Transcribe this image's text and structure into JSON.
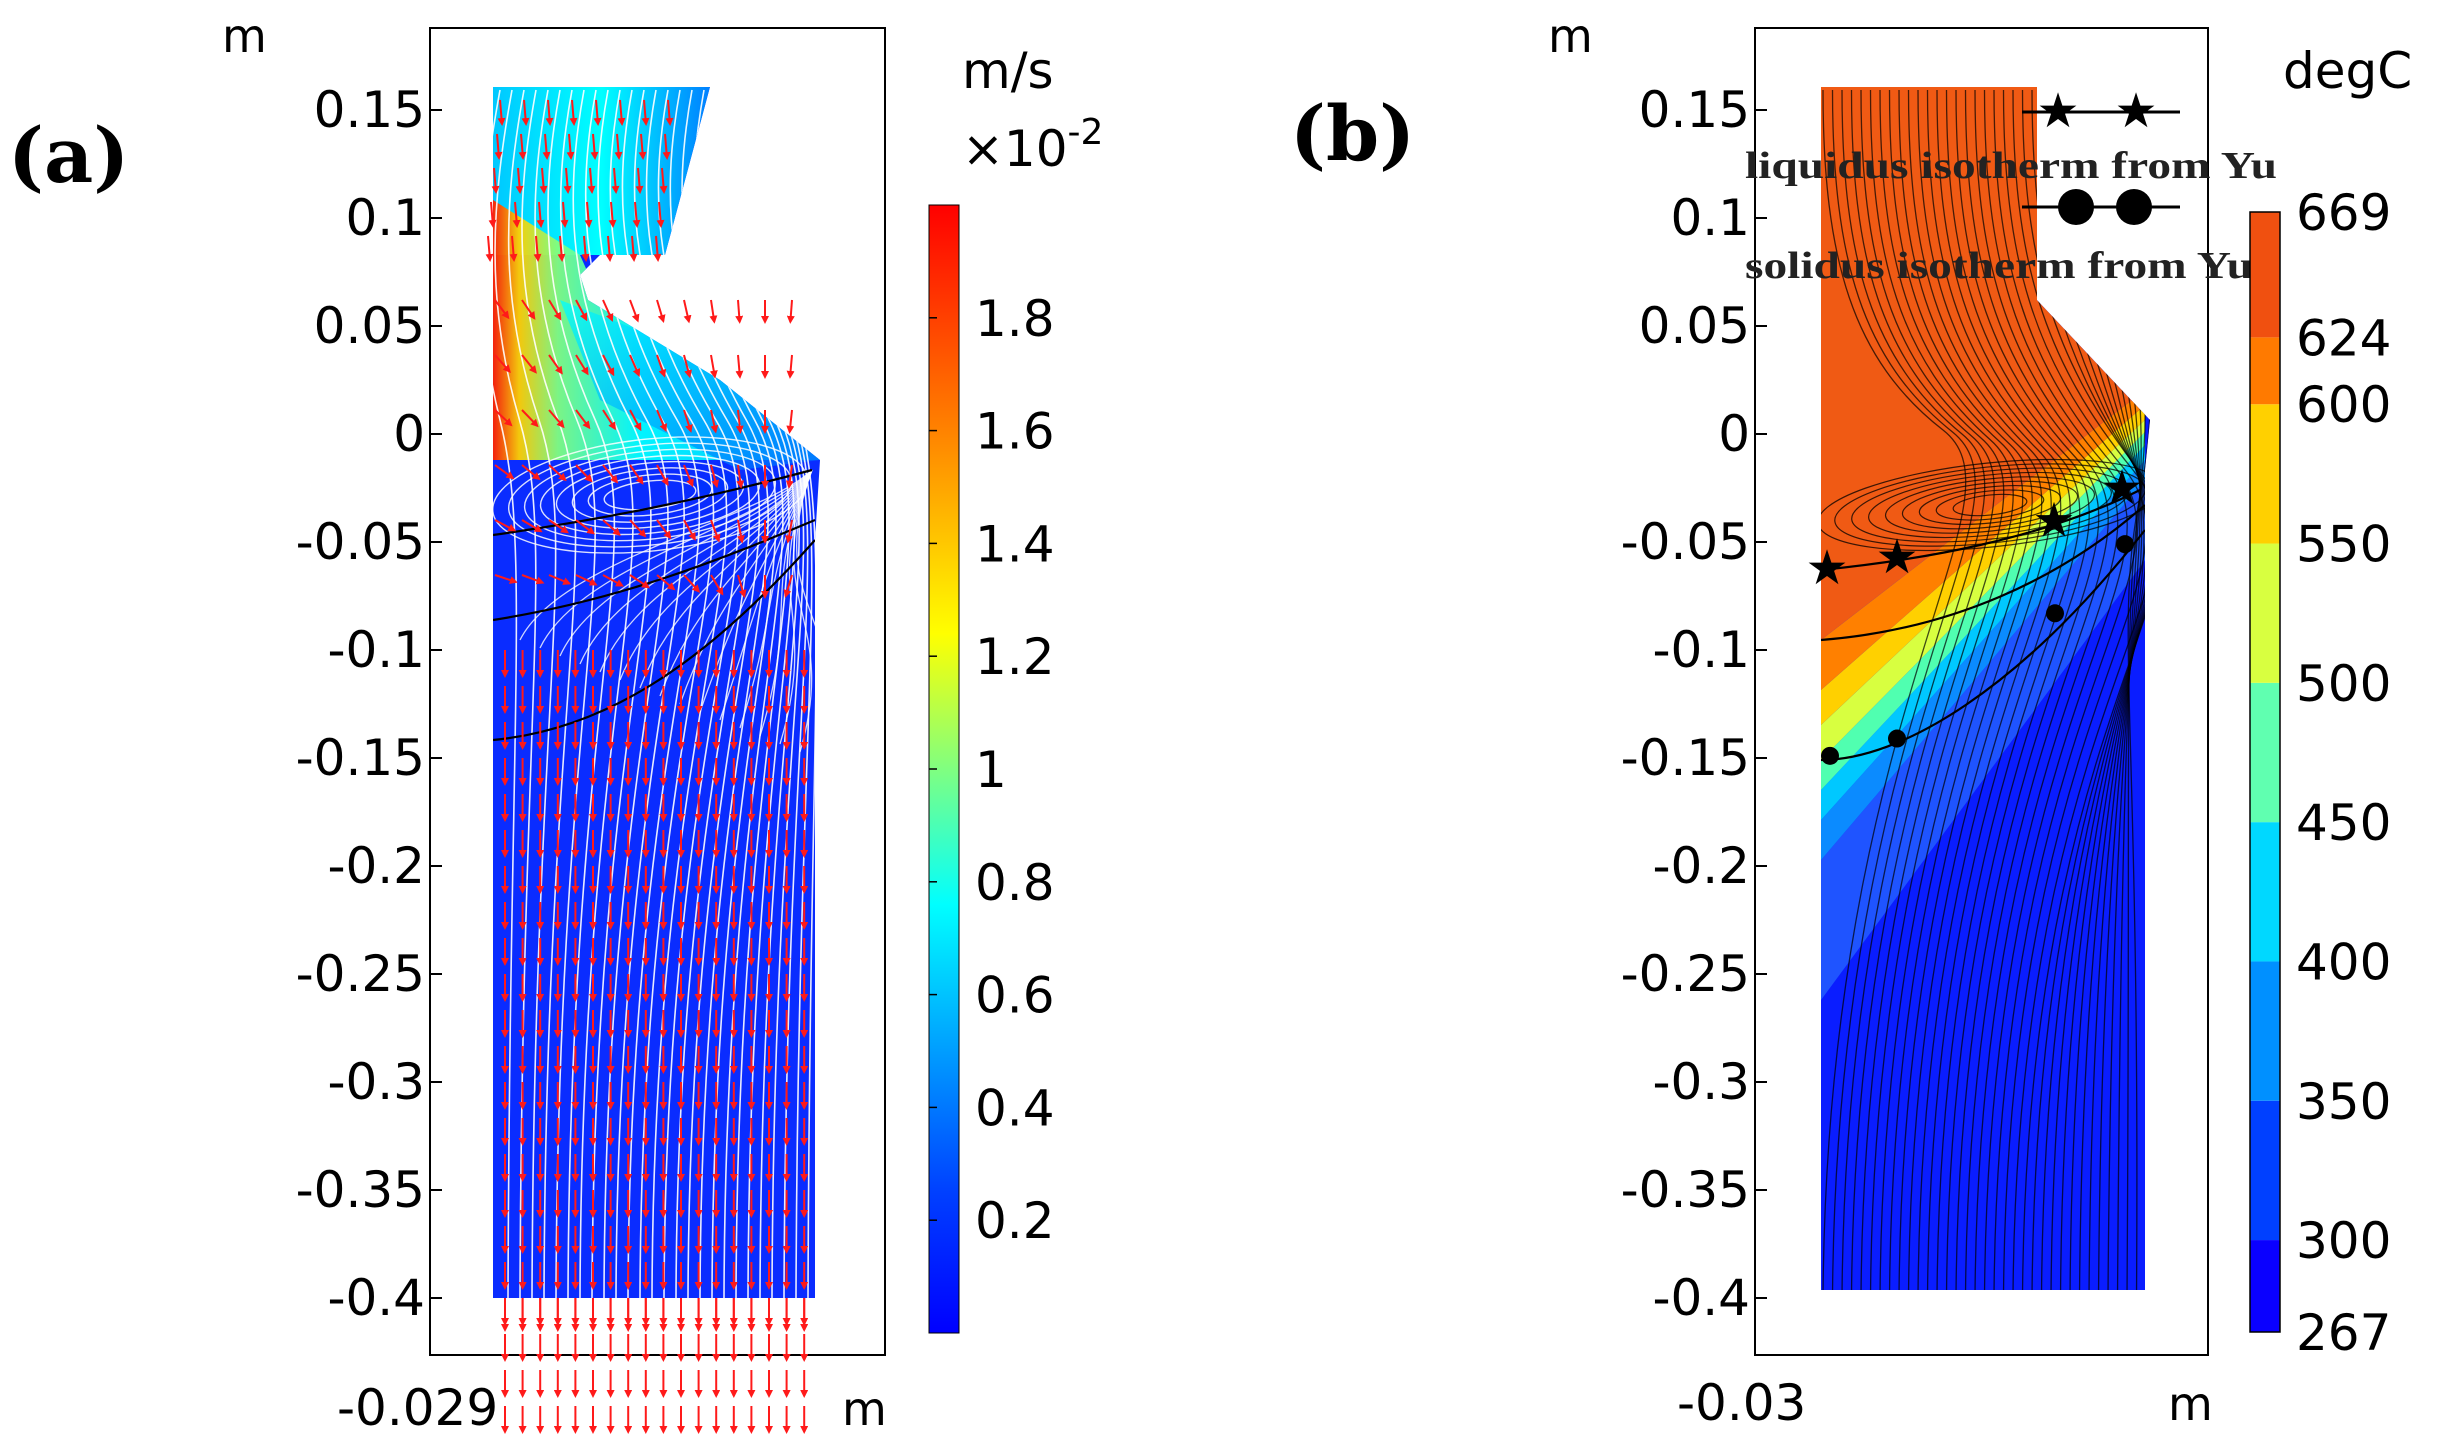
{
  "chart_data": [
    {
      "type": "heatmap",
      "panel_label": "(a)",
      "y_unit": "m",
      "x_unit": "m",
      "x_tick_labels": [
        "-0.029"
      ],
      "y_ticks": [
        0.15,
        0.1,
        0.05,
        0,
        -0.05,
        -0.1,
        -0.15,
        -0.2,
        -0.25,
        -0.3,
        -0.35,
        -0.4
      ],
      "y_tick_labels": [
        "0.15",
        "0.1",
        "0.05",
        "0",
        "-0.05",
        "-0.1",
        "-0.15",
        "-0.2",
        "-0.25",
        "-0.3",
        "-0.35",
        "-0.4"
      ],
      "ylim": [
        -0.43,
        0.19
      ],
      "colorbar": {
        "unit": "m/s",
        "scale": "×10",
        "scale_exp": "-2",
        "range": [
          0,
          2
        ],
        "ticks": [
          1.8,
          1.6,
          1.4,
          1.2,
          1,
          0.8,
          0.6,
          0.4,
          0.2
        ],
        "tick_labels": [
          "1.8",
          "1.6",
          "1.4",
          "1.2",
          "1",
          "0.8",
          "0.6",
          "0.4",
          "0.2"
        ],
        "colormap": "jet"
      },
      "overlays": [
        "streamlines (white)",
        "velocity arrows (red)"
      ]
    },
    {
      "type": "heatmap",
      "panel_label": "(b)",
      "y_unit": "m",
      "x_unit": "m",
      "x_tick_labels": [
        "-0.03"
      ],
      "y_ticks": [
        0.15,
        0.1,
        0.05,
        0,
        -0.05,
        -0.1,
        -0.15,
        -0.2,
        -0.25,
        -0.3,
        -0.35,
        -0.4
      ],
      "y_tick_labels": [
        "0.15",
        "0.1",
        "0.05",
        "0",
        "-0.05",
        "-0.1",
        "-0.15",
        "-0.2",
        "-0.25",
        "-0.3",
        "-0.35",
        "-0.4"
      ],
      "ylim": [
        -0.43,
        0.19
      ],
      "colorbar": {
        "unit": "degC",
        "range": [
          267,
          669
        ],
        "ticks": [
          669,
          624,
          600,
          550,
          500,
          450,
          400,
          350,
          300,
          267
        ],
        "tick_labels": [
          "669",
          "624",
          "600",
          "550",
          "500",
          "450",
          "400",
          "350",
          "300",
          "267"
        ],
        "colormap": "jet (banded)"
      },
      "legend": {
        "placement": "top-right",
        "entries": [
          {
            "label": "liquidus isotherm from Yu",
            "marker": "star"
          },
          {
            "label": "solidus isotherm from Yu",
            "marker": "circle"
          }
        ]
      },
      "series": [
        {
          "name": "liquidus isotherm from Yu",
          "marker": "star",
          "y": [
            -0.062,
            -0.057,
            -0.04,
            -0.025
          ]
        },
        {
          "name": "solidus isotherm from Yu",
          "marker": "circle",
          "y": [
            -0.149,
            -0.141,
            -0.083,
            -0.051
          ]
        }
      ]
    }
  ],
  "colors": {
    "jet": [
      "#00008f",
      "#0000ff",
      "#0070ff",
      "#00ffff",
      "#80ff80",
      "#ffff00",
      "#ff8000",
      "#ff0000",
      "#800000"
    ],
    "arrow": "#ff1a1a",
    "streamline_a": "#ffffff",
    "streamline_b": "#000000",
    "frame": "#000000"
  }
}
